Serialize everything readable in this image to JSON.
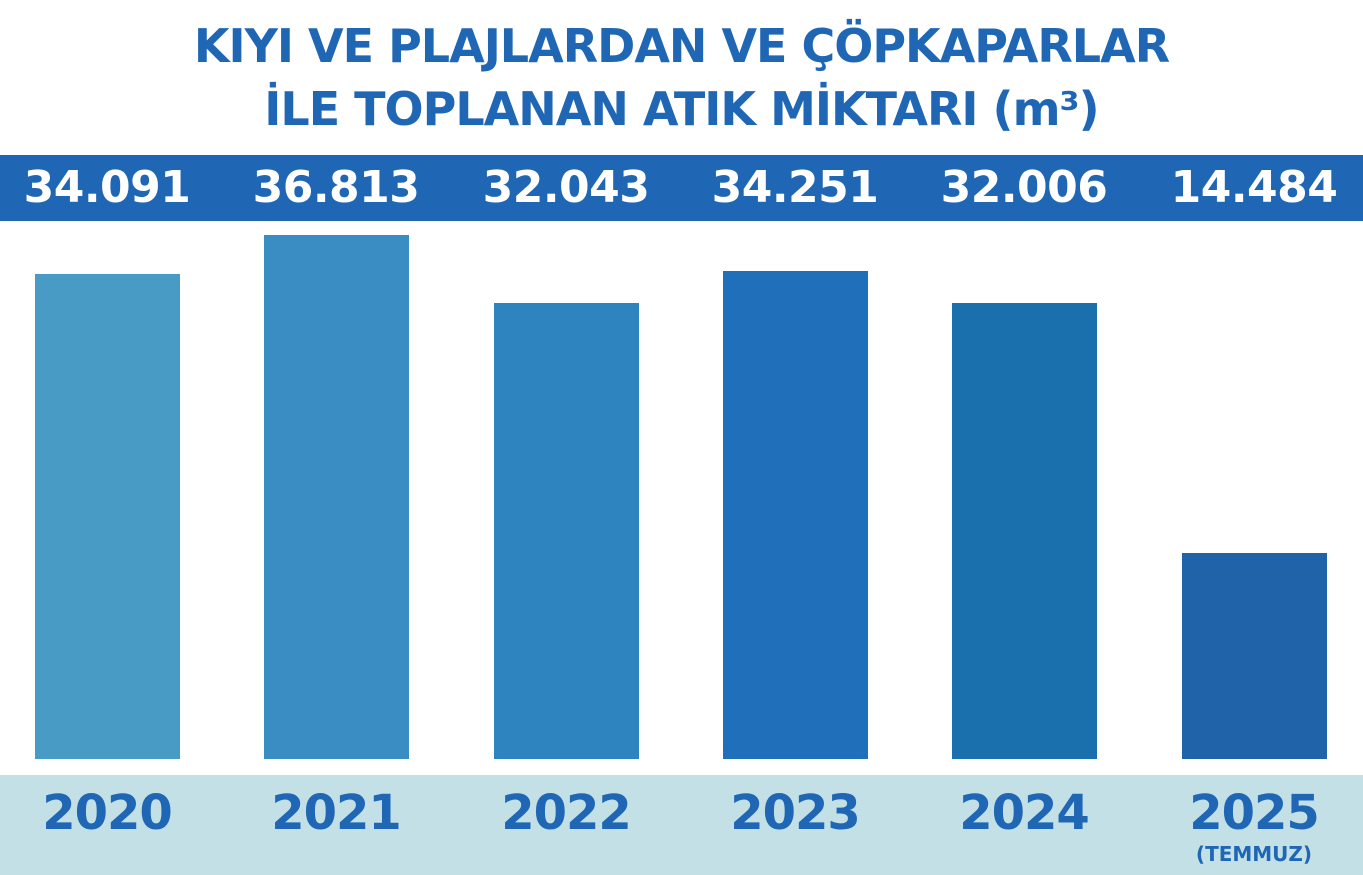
{
  "title": {
    "line1": "KIYI VE PLAJLARDAN VE ÇÖPKAPARLAR",
    "line2": "İLE TOPLANAN ATIK MİKTARI (m³)"
  },
  "colors": {
    "title": "#1f67b5",
    "value_band": "#1f67b5",
    "year_band": "#c3e0e6",
    "bars": [
      "#479bc4",
      "#3a8dc3",
      "#2e84bf",
      "#1f6fba",
      "#1a70ad",
      "#2163a8"
    ]
  },
  "chart_data": {
    "type": "bar",
    "title": "KIYI VE PLAJLARDAN VE ÇÖPKAPARLAR İLE TOPLANAN ATIK MİKTARI (m³)",
    "categories": [
      "2020",
      "2021",
      "2022",
      "2023",
      "2024",
      "2025"
    ],
    "category_notes": [
      "",
      "",
      "",
      "",
      "",
      "(TEMMUZ)"
    ],
    "values": [
      34091,
      36813,
      32043,
      34251,
      32006,
      14484
    ],
    "value_labels": [
      "34.091",
      "36.813",
      "32.043",
      "34.251",
      "32.006",
      "14.484"
    ],
    "unit": "m³"
  }
}
